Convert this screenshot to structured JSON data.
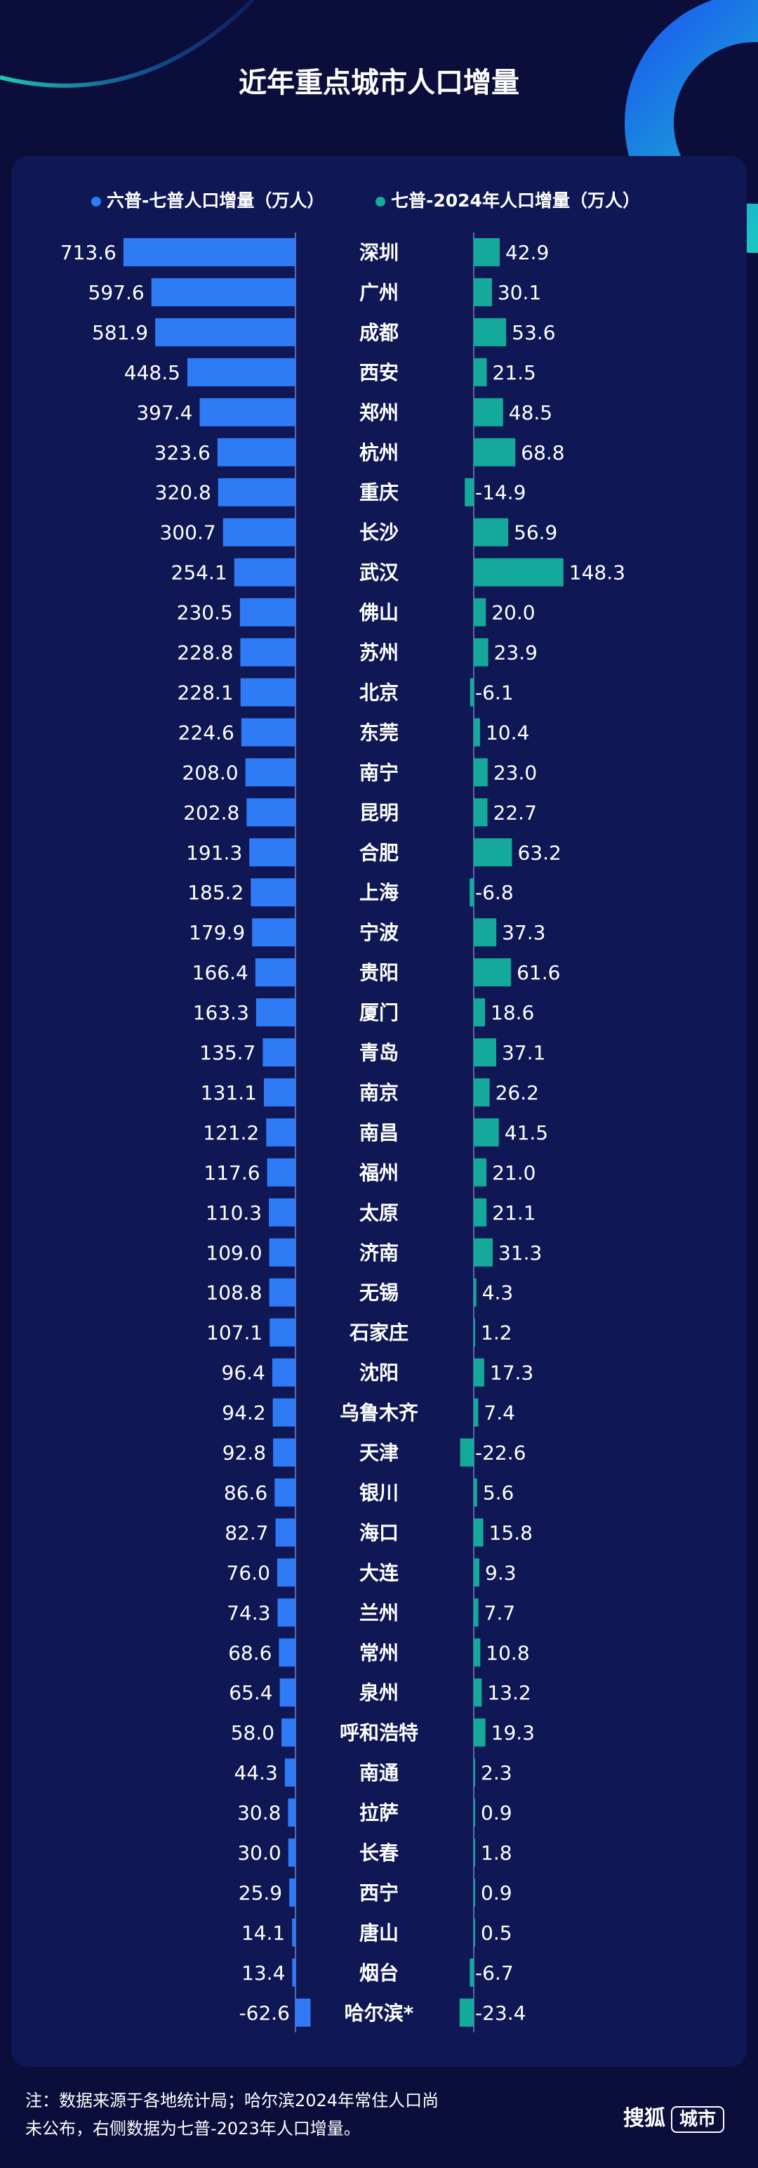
{
  "chart_data": {
    "type": "bar",
    "title": "近年重点城市人口增量",
    "categories": [
      "深圳",
      "广州",
      "成都",
      "西安",
      "郑州",
      "杭州",
      "重庆",
      "长沙",
      "武汉",
      "佛山",
      "苏州",
      "北京",
      "东莞",
      "南宁",
      "昆明",
      "合肥",
      "上海",
      "宁波",
      "贵阳",
      "厦门",
      "青岛",
      "南京",
      "南昌",
      "福州",
      "太原",
      "济南",
      "无锡",
      "石家庄",
      "沈阳",
      "乌鲁木齐",
      "天津",
      "银川",
      "海口",
      "大连",
      "兰州",
      "常州",
      "泉州",
      "呼和浩特",
      "南通",
      "拉萨",
      "长春",
      "西宁",
      "唐山",
      "烟台",
      "哈尔滨*"
    ],
    "series": [
      {
        "name": "六普-七普人口增量（万人）",
        "color": "#2f7bf5",
        "values": [
          713.6,
          597.6,
          581.9,
          448.5,
          397.4,
          323.6,
          320.8,
          300.7,
          254.1,
          230.5,
          228.8,
          228.1,
          224.6,
          208.0,
          202.8,
          191.3,
          185.2,
          179.9,
          166.4,
          163.3,
          135.7,
          131.1,
          121.2,
          117.6,
          110.3,
          109.0,
          108.8,
          107.1,
          96.4,
          94.2,
          92.8,
          86.6,
          82.7,
          76.0,
          74.3,
          68.6,
          65.4,
          58.0,
          44.3,
          30.8,
          30.0,
          25.9,
          14.1,
          13.4,
          -62.6
        ]
      },
      {
        "name": "七普-2024年人口增量（万人）",
        "color": "#14a99b",
        "values": [
          42.9,
          30.1,
          53.6,
          21.5,
          48.5,
          68.8,
          -14.9,
          56.9,
          148.3,
          20.0,
          23.9,
          -6.1,
          10.4,
          23.0,
          22.7,
          63.2,
          -6.8,
          37.3,
          61.6,
          18.6,
          37.1,
          26.2,
          41.5,
          21.0,
          21.1,
          31.3,
          4.3,
          1.2,
          17.3,
          7.4,
          -22.6,
          5.6,
          15.8,
          9.3,
          7.7,
          10.8,
          13.2,
          19.3,
          2.3,
          0.9,
          1.8,
          0.9,
          0.5,
          -6.7,
          -23.4
        ]
      }
    ],
    "legend": "top",
    "grid": false
  },
  "footnote": "注：数据来源于各地统计局；哈尔滨2024年常住人口尚未公布，右侧数据为七普-2023年人口增量。",
  "brand": {
    "name": "搜狐",
    "tag": "城市"
  }
}
